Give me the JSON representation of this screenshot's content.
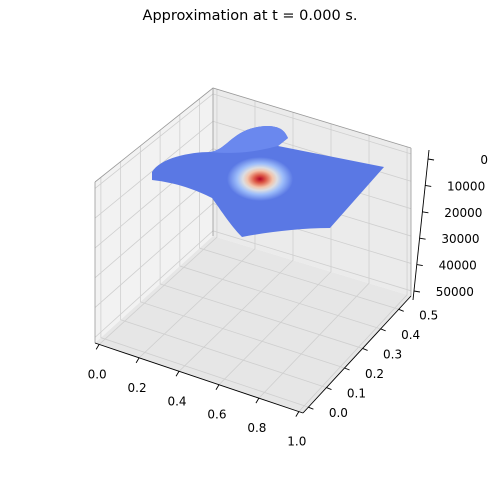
{
  "figure": {
    "title": "Approximation at t = 0.000 s."
  },
  "chart_data": {
    "type": "surface3d",
    "title": "Approximation at t = 0.000 s.",
    "xlabel": "",
    "ylabel": "",
    "zlabel": "",
    "x_ticks": [
      "0.0",
      "0.2",
      "0.4",
      "0.6",
      "0.8",
      "1.0"
    ],
    "y_ticks": [
      "0.0",
      "0.1",
      "0.2",
      "0.3",
      "0.4",
      "0.5"
    ],
    "z_ticks": [
      "0",
      "10000",
      "20000",
      "30000",
      "40000",
      "50000"
    ],
    "xlim": [
      0,
      1.0
    ],
    "ylim": [
      0,
      0.55
    ],
    "zlim": [
      -55000,
      5000
    ],
    "grid": true,
    "colormap": "coolwarm",
    "surface": {
      "base_value": 0,
      "peak_value": -10000,
      "peak_location": {
        "x": 0.5,
        "y": 0.3
      },
      "description_values": "flat surface near z=0 with a single localized bump",
      "color_low": "#5a78e4",
      "color_high": "#b40426"
    }
  }
}
